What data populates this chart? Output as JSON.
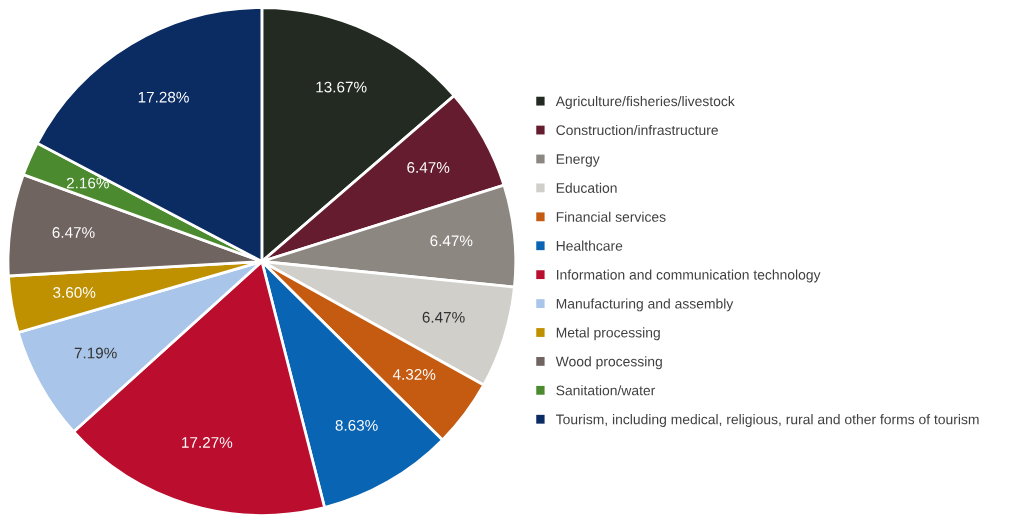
{
  "chart_data": {
    "type": "pie",
    "categories": [
      "Agriculture/fisheries/livestock",
      "Construction/infrastructure",
      "Energy",
      "Education",
      "Financial services",
      "Healthcare",
      "Information and communication technology",
      "Manufacturing and assembly",
      "Metal processing",
      "Wood processing",
      "Sanitation/water",
      "Tourism, including medical, religious, rural and other forms of tourism"
    ],
    "values": [
      13.67,
      6.47,
      6.47,
      6.47,
      4.32,
      8.63,
      17.27,
      7.19,
      3.6,
      6.47,
      2.16,
      17.28
    ],
    "value_labels": [
      "13.67%",
      "6.47%",
      "6.47%",
      "6.47%",
      "4.32%",
      "8.63%",
      "17.27%",
      "7.19%",
      "3.60%",
      "6.47%",
      "2.16%",
      "17.28%"
    ],
    "colors": [
      "#222a22",
      "#641c2e",
      "#8c8781",
      "#d0cfca",
      "#c55a11",
      "#0a64b4",
      "#bb0e2e",
      "#a9c6ea",
      "#bf9000",
      "#6f6460",
      "#4b8a2e",
      "#0b2b63"
    ],
    "legend": "right"
  }
}
